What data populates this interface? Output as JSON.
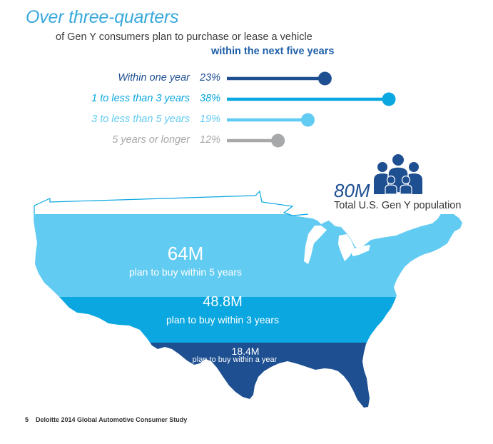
{
  "title": "Over three-quarters",
  "subtitle_line1": "of Gen Y consumers plan to purchase or lease a vehicle",
  "subtitle_line2": "within the next five years",
  "colors": {
    "dark": "#1d4f91",
    "medium": "#0aa7e0",
    "light": "#62cbf2",
    "gray": "#a7a8aa"
  },
  "chart_data": [
    {
      "type": "bar",
      "categories": [
        "Within one year",
        "1 to less than 3 years",
        "3 to less than 5 years",
        "5 years or longer"
      ],
      "values": [
        23,
        38,
        19,
        12
      ],
      "value_labels": [
        "23%",
        "38%",
        "19%",
        "12%"
      ],
      "unit": "%",
      "xlim": [
        0,
        38
      ]
    },
    {
      "type": "area",
      "population_value": "80M",
      "population_label": "Total U.S. Gen Y population",
      "categories": [
        "plan to buy within 5 years",
        "plan to buy within 3 years",
        "plan to buy within a year"
      ],
      "values": [
        64,
        48.8,
        18.4
      ],
      "value_labels": [
        "64M",
        "48.8M",
        "18.4M"
      ],
      "unit": "M"
    }
  ],
  "footer": {
    "page": "5",
    "text": "Deloitte 2014 Global Automotive Consumer Study"
  },
  "icons": {
    "population": "people-group-icon",
    "map": "us-map-icon"
  }
}
